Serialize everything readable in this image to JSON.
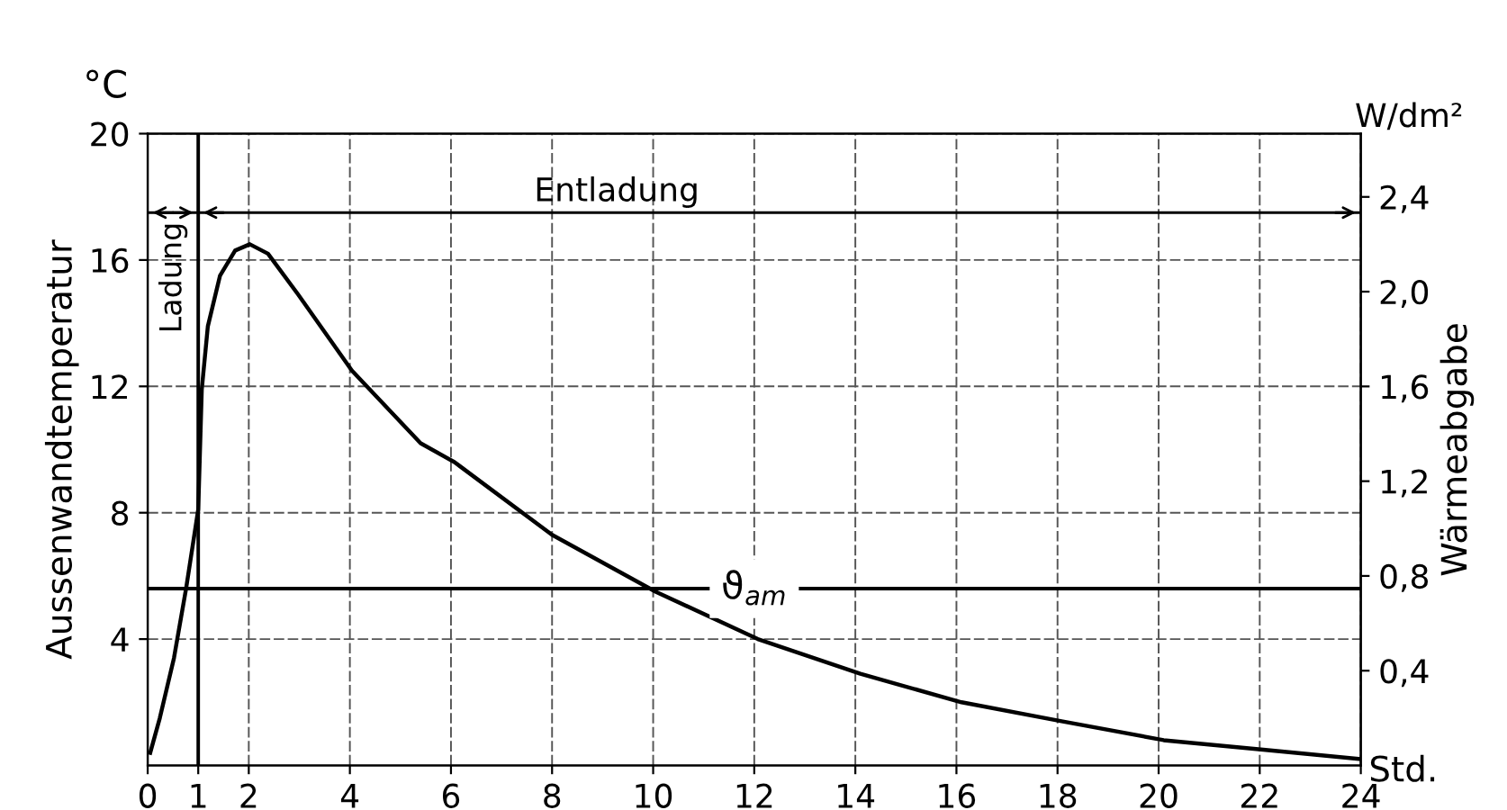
{
  "chart_data": {
    "type": "line",
    "xlabel": "Std.",
    "ylabel": "Aussenwandtemperatur",
    "y2label": "Wärmeabgabe",
    "annotations": [
      "°C",
      "W/dm²",
      "Ladung"
    ],
    "x": [
      0.05,
      0.24,
      0.52,
      0.76,
      1.0,
      1.07,
      1.19,
      1.43,
      1.73,
      2.02,
      2.38,
      2.98,
      4.04,
      5.4,
      6.07,
      8.0,
      10.05,
      12.07,
      14.1,
      16.1,
      18.08,
      20.1,
      22.07,
      24.0
    ],
    "series": [
      {
        "color": "#000000",
        "values": [
          0.4,
          1.5,
          3.4,
          5.6,
          8.1,
          11.9,
          13.9,
          15.5,
          16.3,
          16.5,
          16.2,
          14.9,
          12.5,
          10.2,
          9.6,
          7.3,
          5.5,
          4.0,
          2.9,
          2.0,
          1.4,
          0.8,
          0.5,
          0.2
        ]
      }
    ],
    "xlim": [
      0,
      24
    ],
    "ylim": [
      0,
      20
    ],
    "y2lim": [
      0,
      2.667
    ],
    "xticks": [
      0,
      1,
      2,
      4,
      6,
      8,
      10,
      12,
      14,
      16,
      18,
      20,
      22,
      24
    ],
    "yticks": [
      4,
      8,
      12,
      16,
      20
    ],
    "y2ticks": [
      {
        "value": 0.4,
        "label": "0,4"
      },
      {
        "value": 0.8,
        "label": "0,8"
      },
      {
        "value": 1.2,
        "label": "1,2"
      },
      {
        "value": 1.6,
        "label": "1,6"
      },
      {
        "value": 2.0,
        "label": "2,0"
      },
      {
        "value": 2.4,
        "label": "2,4"
      }
    ],
    "ref_lines": [
      {
        "axis": "x",
        "value": 1,
        "color": "#000000",
        "line_style": "solid"
      },
      {
        "axis": "y",
        "value": 17.5,
        "label": "Entladung",
        "color": "#000000",
        "line_style": "solid"
      },
      {
        "axis": "y",
        "value": 5.6,
        "label": "ϑ$_{am}$",
        "color": "#000000",
        "line_style": "solid"
      }
    ],
    "grid": true,
    "marker": "none",
    "line_style": "solid"
  }
}
